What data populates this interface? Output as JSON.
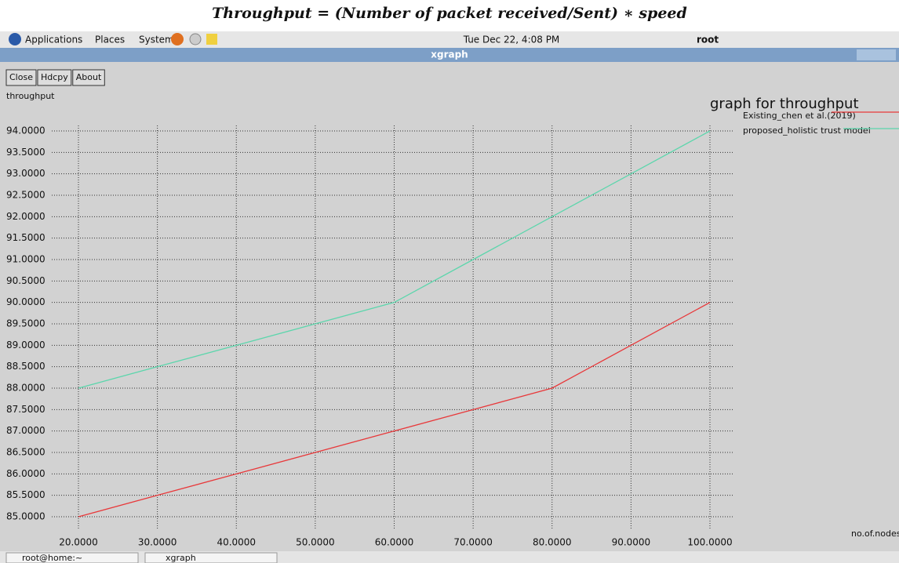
{
  "heading": "Throughput = (Number of packet received/Sent) ∗ speed",
  "panel": {
    "menus": [
      "Applications",
      "Places",
      "System"
    ],
    "clock": "Tue Dec 22,  4:08 PM",
    "user": "root"
  },
  "window": {
    "title": "xgraph",
    "buttons": [
      "Close",
      "Hdcpy",
      "About"
    ]
  },
  "taskbar": [
    "root@home:~",
    "xgraph"
  ],
  "chart_data": {
    "type": "line",
    "title": "graph for throughput",
    "y_label": "throughput",
    "x_label": "no.of.nodes",
    "x": [
      20,
      30,
      40,
      50,
      60,
      70,
      80,
      90,
      100
    ],
    "series": [
      {
        "name": "Existing_chen et al.(2019)",
        "color": "#e8383a",
        "values": [
          85,
          85.5,
          86,
          86.5,
          87,
          87.5,
          88,
          89,
          90
        ]
      },
      {
        "name": "proposed_holistic trust model",
        "color": "#5cd6ac",
        "values": [
          88,
          88.5,
          89,
          89.5,
          90,
          91,
          92,
          93,
          94
        ]
      }
    ],
    "xlim": [
      20,
      100
    ],
    "ylim": [
      85,
      94
    ],
    "xticks": [
      {
        "value": 20,
        "label": "20.0000"
      },
      {
        "value": 30,
        "label": "30.0000"
      },
      {
        "value": 40,
        "label": "40.0000"
      },
      {
        "value": 50,
        "label": "50.0000"
      },
      {
        "value": 60,
        "label": "60.0000"
      },
      {
        "value": 70,
        "label": "70.0000"
      },
      {
        "value": 80,
        "label": "80.0000"
      },
      {
        "value": 90,
        "label": "90.0000"
      },
      {
        "value": 100,
        "label": "100.0000"
      }
    ],
    "yticks": [
      {
        "value": 85,
        "label": "85.0000"
      },
      {
        "value": 85.5,
        "label": "85.5000"
      },
      {
        "value": 86,
        "label": "86.0000"
      },
      {
        "value": 86.5,
        "label": "86.5000"
      },
      {
        "value": 87,
        "label": "87.0000"
      },
      {
        "value": 87.5,
        "label": "87.5000"
      },
      {
        "value": 88,
        "label": "88.0000"
      },
      {
        "value": 88.5,
        "label": "88.5000"
      },
      {
        "value": 89,
        "label": "89.0000"
      },
      {
        "value": 89.5,
        "label": "89.5000"
      },
      {
        "value": 90,
        "label": "90.0000"
      },
      {
        "value": 90.5,
        "label": "90.5000"
      },
      {
        "value": 91,
        "label": "91.0000"
      },
      {
        "value": 91.5,
        "label": "91.5000"
      },
      {
        "value": 92,
        "label": "92.0000"
      },
      {
        "value": 92.5,
        "label": "92.5000"
      },
      {
        "value": 93,
        "label": "93.0000"
      },
      {
        "value": 93.5,
        "label": "93.5000"
      },
      {
        "value": 94,
        "label": "94.0000"
      }
    ],
    "grid": true
  }
}
